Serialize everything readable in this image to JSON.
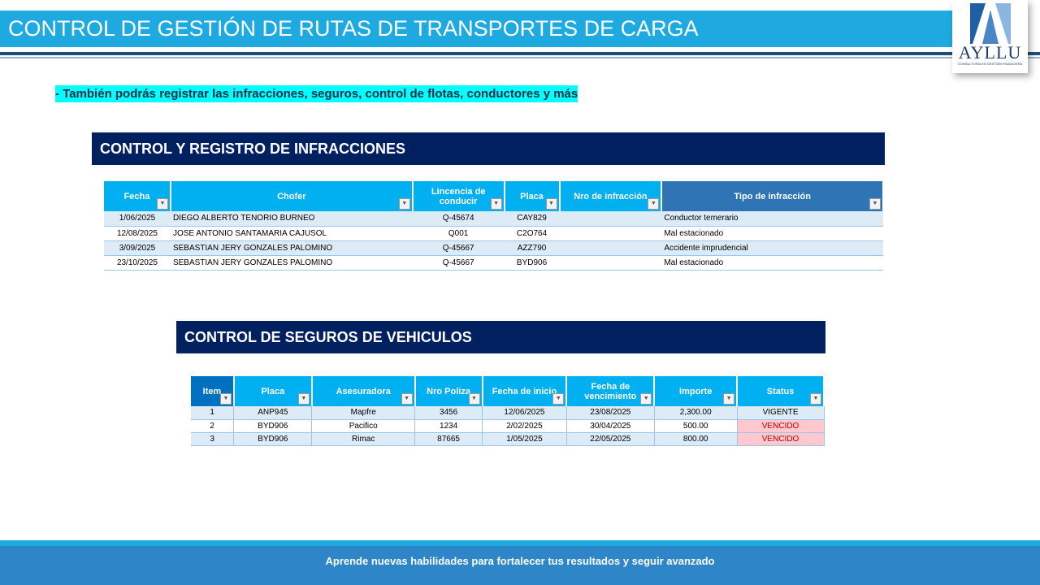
{
  "header": {
    "title": "CONTROL DE GESTIÓN DE RUTAS DE TRANSPORTES DE CARGA",
    "logo_text": "AYLLU",
    "logo_subtitle": "CONSULTORÍA EN GESTIÓN FINANCIERA"
  },
  "highlight": "- También podrás registrar las infracciones, seguros, control de flotas, conductores y más",
  "infracciones": {
    "title": "CONTROL Y REGISTRO DE INFRACCIONES",
    "columns": [
      "Fecha",
      "Chofer",
      "Lincencia de conducir",
      "Placa",
      "Nro de infracción",
      "Tipo de infracción"
    ],
    "rows": [
      [
        "1/06/2025",
        "DIEGO ALBERTO TENORIO BURNEO",
        "Q-45674",
        "CAY829",
        "",
        "Conductor temerario"
      ],
      [
        "12/08/2025",
        "JOSE ANTONIO SANTAMARIA CAJUSOL",
        "Q001",
        "C2O764",
        "",
        "Mal estacionado"
      ],
      [
        "3/09/2025",
        "SEBASTIAN JERY GONZALES PALOMINO",
        "Q-45667",
        "AZZ790",
        "",
        "Accidente imprudencial"
      ],
      [
        "23/10/2025",
        "SEBASTIAN JERY GONZALES PALOMINO",
        "Q-45667",
        "BYD906",
        "",
        "Mal estacionado"
      ]
    ]
  },
  "seguros": {
    "title": "CONTROL DE SEGUROS DE VEHICULOS",
    "columns": [
      "Item",
      "Placa",
      "Asesuradora",
      "Nro Poliza",
      "Fecha de inicio",
      "Fecha de vencimiento",
      "Importe",
      "Status"
    ],
    "rows": [
      [
        "1",
        "ANP945",
        "Mapfre",
        "3456",
        "12/06/2025",
        "23/08/2025",
        "2,300.00",
        "VIGENTE"
      ],
      [
        "2",
        "BYD906",
        "Pacifico",
        "1234",
        "2/02/2025",
        "30/04/2025",
        "500.00",
        "VENCIDO"
      ],
      [
        "3",
        "BYD906",
        "Rimac",
        "87665",
        "1/05/2025",
        "22/05/2025",
        "800.00",
        "VENCIDO"
      ]
    ]
  },
  "footer": "Aprende nuevas habilidades para fortalecer tus resultados y seguir avanzado"
}
